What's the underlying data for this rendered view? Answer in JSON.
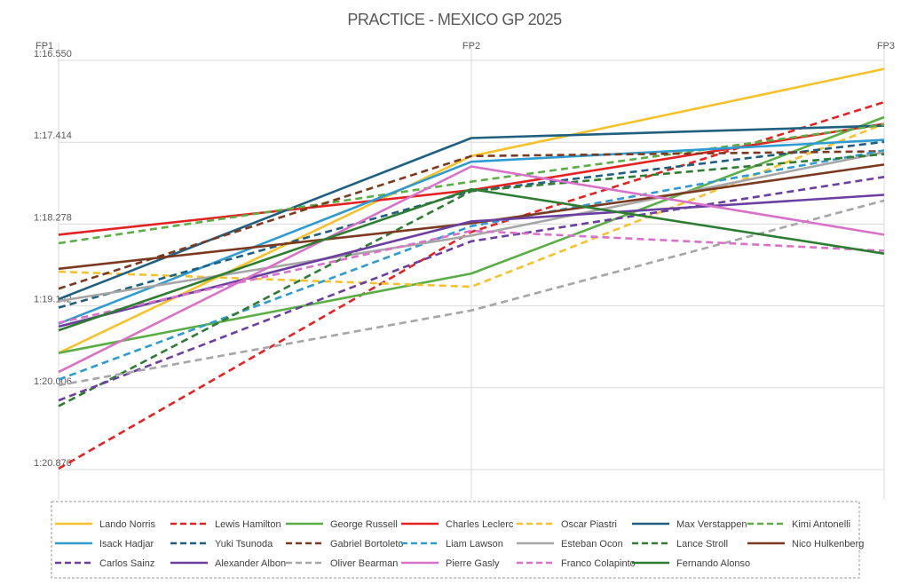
{
  "chart_data": {
    "type": "line",
    "title": "PRACTICE - MEXICO GP 2025",
    "xlabel": "",
    "ylabel": "",
    "x": [
      "FP1",
      "FP2",
      "FP3"
    ],
    "y_reversed": true,
    "ylim": [
      76.55,
      80.87
    ],
    "y_ticks": [
      {
        "value": 76.55,
        "label": "1:16.550"
      },
      {
        "value": 77.414,
        "label": "1:17.414"
      },
      {
        "value": 78.278,
        "label": "1:18.278"
      },
      {
        "value": 79.142,
        "label": "1:19.142"
      },
      {
        "value": 80.006,
        "label": "1:20.006"
      },
      {
        "value": 80.87,
        "label": "1:20.870"
      }
    ],
    "grid": true,
    "legend_position": "bottom",
    "legend_columns": 7,
    "series": [
      {
        "name": "Lando Norris",
        "color": "#F5C22B",
        "dash": false,
        "values": [
          79.64,
          77.56,
          76.64
        ]
      },
      {
        "name": "Lewis Hamilton",
        "color": "#E32222",
        "dash": true,
        "values": [
          80.86,
          78.36,
          76.99
        ]
      },
      {
        "name": "George Russell",
        "color": "#5BAE45",
        "dash": false,
        "values": [
          79.64,
          78.8,
          77.15
        ]
      },
      {
        "name": "Charles Leclerc",
        "color": "#E32222",
        "dash": false,
        "values": [
          78.39,
          77.92,
          77.22
        ]
      },
      {
        "name": "Oscar Piastri",
        "color": "#F5C22B",
        "dash": true,
        "values": [
          78.78,
          78.94,
          77.22
        ]
      },
      {
        "name": "Max Verstappen",
        "color": "#1F5F7F",
        "dash": false,
        "values": [
          79.07,
          77.37,
          77.24
        ]
      },
      {
        "name": "Kimi Antonelli",
        "color": "#5BAE45",
        "dash": true,
        "values": [
          78.48,
          77.83,
          77.23
        ]
      },
      {
        "name": "Isack Hadjar",
        "color": "#2E9BD1",
        "dash": false,
        "values": [
          79.33,
          77.62,
          77.39
        ]
      },
      {
        "name": "Yuki Tsunoda",
        "color": "#1F5F7F",
        "dash": true,
        "values": [
          79.16,
          77.93,
          77.41
        ]
      },
      {
        "name": "Gabriel Bortoleto",
        "color": "#7B3A20",
        "dash": true,
        "values": [
          78.96,
          77.56,
          77.51
        ]
      },
      {
        "name": "Liam Lawson",
        "color": "#2E9BD1",
        "dash": true,
        "values": [
          79.92,
          78.3,
          77.5
        ]
      },
      {
        "name": "Esteban Ocon",
        "color": "#A6A6A6",
        "dash": false,
        "values": [
          79.09,
          78.4,
          77.52
        ]
      },
      {
        "name": "Lance Stroll",
        "color": "#2E7D32",
        "dash": true,
        "values": [
          80.2,
          77.93,
          77.54
        ]
      },
      {
        "name": "Nico Hulkenberg",
        "color": "#7B3A20",
        "dash": false,
        "values": [
          78.75,
          78.27,
          77.65
        ]
      },
      {
        "name": "Carlos Sainz",
        "color": "#6B3FA0",
        "dash": true,
        "values": [
          80.14,
          78.46,
          77.78
        ]
      },
      {
        "name": "Alexander Albon",
        "color": "#6B3FA0",
        "dash": false,
        "values": [
          79.36,
          78.25,
          77.97
        ]
      },
      {
        "name": "Oliver Bearman",
        "color": "#A6A6A6",
        "dash": true,
        "values": [
          79.98,
          79.19,
          78.03
        ]
      },
      {
        "name": "Pierre Gasly",
        "color": "#D872C8",
        "dash": false,
        "values": [
          79.84,
          77.67,
          78.39
        ]
      },
      {
        "name": "Franco Colapinto",
        "color": "#D872C8",
        "dash": true,
        "values": [
          79.32,
          78.35,
          78.56
        ]
      },
      {
        "name": "Fernando Alonso",
        "color": "#2E7D32",
        "dash": false,
        "values": [
          79.4,
          77.91,
          78.59
        ]
      }
    ]
  }
}
